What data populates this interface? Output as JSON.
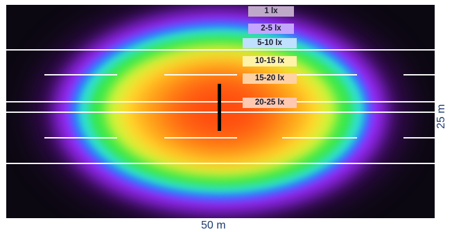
{
  "legend": {
    "items": [
      {
        "label": "1 lx",
        "color": "#bfa9c8"
      },
      {
        "label": "2-5 lx",
        "color": "#c4a6ff"
      },
      {
        "label": "5-10 lx",
        "color": "#bfe0ff"
      },
      {
        "label": "10-15 lx",
        "color": "#fff3a8"
      },
      {
        "label": "15-20 lx",
        "color": "#ffd2a3"
      },
      {
        "label": "20-25 lx",
        "color": "#ffc8b0"
      }
    ]
  },
  "dimensions": {
    "width_label": "50 m",
    "height_label": "25 m"
  },
  "colors": {
    "text": "#1b3b6f",
    "background": "#0c0812"
  }
}
